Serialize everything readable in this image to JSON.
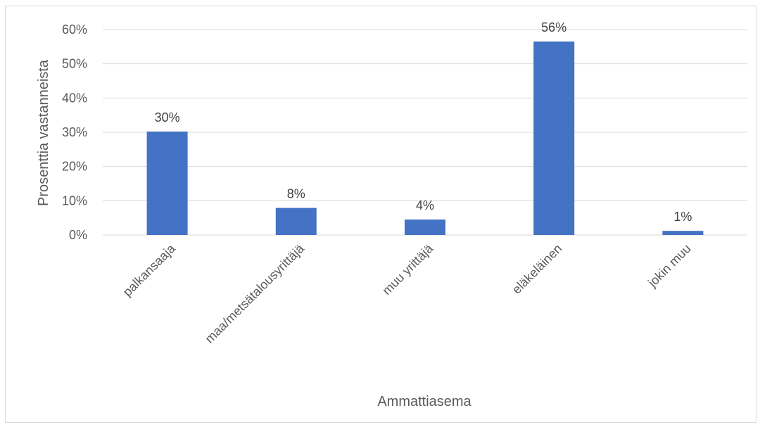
{
  "chart_data": {
    "type": "bar",
    "categories": [
      "palkansaaja",
      "maa/metsätalousyrittäjä",
      "muu yrittäjä",
      "eläkeläinen",
      "jokin muu"
    ],
    "values": [
      30,
      8,
      4,
      56,
      1
    ],
    "value_labels": [
      "30%",
      "8%",
      "4%",
      "56%",
      "1%"
    ],
    "exact_values": [
      30.2,
      7.9,
      4.5,
      56.5,
      1.2
    ],
    "title": "",
    "xlabel": "Ammattiasema",
    "ylabel": "Prosenttia vastanneista",
    "ylim": [
      0,
      60
    ],
    "yticks": [
      "0%",
      "10%",
      "20%",
      "30%",
      "40%",
      "50%",
      "60%"
    ],
    "grid": true,
    "legend": "none",
    "bar_color": "#4472c4",
    "grid_color": "#d9d9d9"
  }
}
